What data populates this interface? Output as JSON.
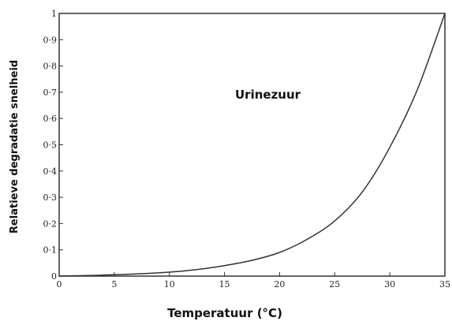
{
  "chart_data": {
    "type": "line",
    "title": "",
    "xlabel": "Temperatuur (°C)",
    "ylabel": "Relatieve degradatie snelheid",
    "xlim": [
      0,
      35
    ],
    "ylim": [
      0,
      1
    ],
    "x_ticks": [
      "0",
      "5",
      "10",
      "15",
      "20",
      "25",
      "30",
      "35"
    ],
    "y_ticks": [
      "0",
      "0·1",
      "0·2",
      "0·3",
      "0·4",
      "0·5",
      "0·6",
      "0·7",
      "0·8",
      "0·9",
      "1"
    ],
    "grid": false,
    "annotation": "Urinezuur",
    "series": [
      {
        "x": [
          0,
          5,
          10,
          12.5,
          15,
          17.5,
          20,
          22.5,
          25,
          27.5,
          30,
          32.5,
          35
        ],
        "y": [
          0,
          0.005,
          0.015,
          0.025,
          0.04,
          0.06,
          0.09,
          0.14,
          0.21,
          0.32,
          0.49,
          0.71,
          1.0
        ]
      }
    ]
  }
}
